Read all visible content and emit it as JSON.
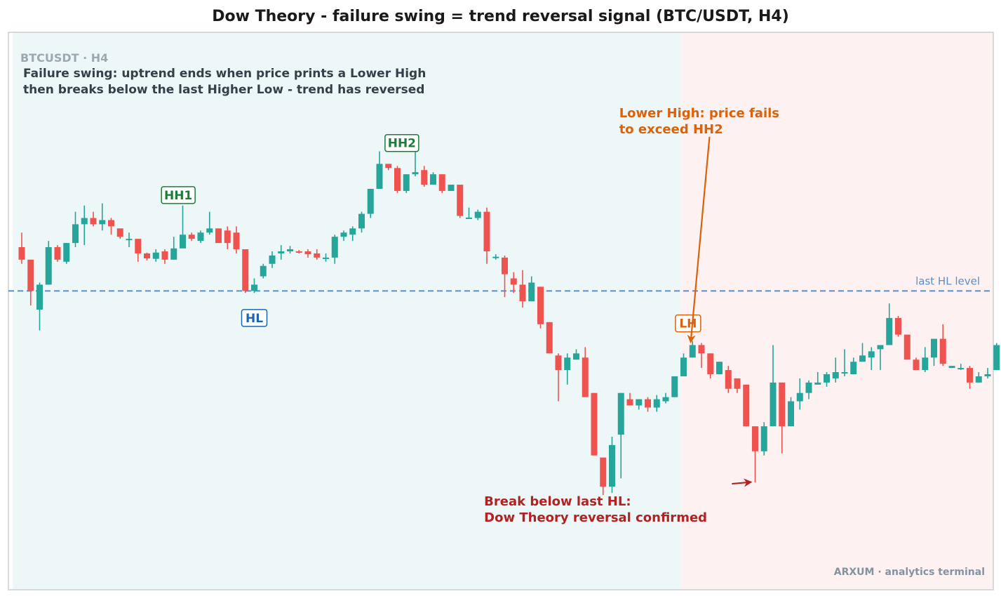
{
  "chart_data": {
    "type": "candlestick",
    "title": "Dow Theory - failure swing = trend reversal signal  (BTC/USDT, H4)",
    "subtitle": "BTCUSDT · H4",
    "annotation": "Failure swing: uptrend ends when price prints a Lower High\nthen breaks below the last Higher Low - trend has reversed",
    "watermark": "ARXUM · analytics terminal",
    "grid": false,
    "ylim": [
      -0.3,
      11.7
    ],
    "candle_colors": {
      "up": "#26a69a",
      "down": "#ef5350"
    },
    "zones": [
      {
        "name": "uptrend",
        "from_index": -1,
        "to_index": 73.7,
        "color": "#eef7f7"
      },
      {
        "name": "downtrend",
        "from_index": 73.7,
        "to_index": 110,
        "color": "#fdf1f1"
      }
    ],
    "hline": {
      "value": 6.2,
      "label": "last HL level",
      "color": "#5b8ec7"
    },
    "labels": [
      {
        "text": "HH1",
        "index": 17.5,
        "value": 8.5,
        "color": "#1e7b3a"
      },
      {
        "text": "HH2",
        "index": 42.5,
        "value": 9.75,
        "color": "#1e7b3a"
      },
      {
        "text": "HL",
        "index": 26,
        "value": 5.55,
        "color": "#1f64b4"
      },
      {
        "text": "LH",
        "index": 74.5,
        "value": 5.42,
        "color": "#d9620a"
      }
    ],
    "arrows": [
      {
        "text": "Lower High: price fails\nto exceed HH2",
        "color": "#d9620a",
        "text_index": 66.8,
        "text_value": 10.37,
        "from_index": 76.9,
        "from_value": 9.9,
        "to_index": 74.8,
        "to_value": 4.98
      },
      {
        "text": "Break below last HL:\nDow Theory reversal confirmed",
        "color": "#b22222",
        "text_index": 51.7,
        "text_value": 1.05,
        "from_index": 79.4,
        "from_value": 1.57,
        "to_index": 81.5,
        "to_value": 1.61
      }
    ],
    "candles": [
      [
        7.25,
        6.95,
        7.6,
        6.85
      ],
      [
        6.95,
        6.2,
        6.95,
        5.85
      ],
      [
        5.75,
        6.35,
        6.4,
        5.25
      ],
      [
        6.35,
        7.25,
        7.4,
        6.35
      ],
      [
        7.25,
        6.95,
        7.3,
        6.9
      ],
      [
        6.9,
        7.35,
        7.35,
        6.85
      ],
      [
        7.35,
        7.8,
        8.1,
        7.25
      ],
      [
        7.8,
        7.95,
        8.25,
        7.3
      ],
      [
        7.95,
        7.8,
        8.1,
        7.75
      ],
      [
        7.8,
        7.9,
        8.3,
        7.65
      ],
      [
        7.9,
        7.75,
        7.95,
        7.55
      ],
      [
        7.7,
        7.5,
        7.7,
        7.45
      ],
      [
        7.45,
        7.45,
        7.6,
        7.25
      ],
      [
        7.45,
        7.1,
        7.45,
        6.9
      ],
      [
        7.1,
        6.98,
        7.12,
        6.93
      ],
      [
        6.97,
        7.12,
        7.2,
        6.9
      ],
      [
        7.15,
        6.95,
        7.2,
        6.85
      ],
      [
        6.95,
        7.22,
        7.5,
        6.95
      ],
      [
        7.22,
        7.55,
        8.25,
        7.55
      ],
      [
        7.55,
        7.45,
        7.6,
        7.4
      ],
      [
        7.4,
        7.6,
        7.65,
        7.35
      ],
      [
        7.6,
        7.7,
        8.1,
        7.55
      ],
      [
        7.7,
        7.35,
        7.7,
        7.35
      ],
      [
        7.65,
        7.35,
        7.75,
        7.2
      ],
      [
        7.6,
        7.2,
        7.75,
        7.1
      ],
      [
        7.2,
        6.2,
        7.2,
        6.15
      ],
      [
        6.2,
        6.35,
        6.5,
        6.15
      ],
      [
        6.55,
        6.8,
        6.85,
        6.5
      ],
      [
        6.85,
        7.05,
        7.15,
        6.75
      ],
      [
        7.1,
        7.15,
        7.3,
        6.95
      ],
      [
        7.15,
        7.2,
        7.28,
        7.1
      ],
      [
        7.15,
        7.13,
        7.18,
        7.1
      ],
      [
        7.15,
        7.08,
        7.2,
        7.0
      ],
      [
        7.1,
        7.0,
        7.2,
        6.95
      ],
      [
        6.98,
        7.0,
        7.1,
        6.9
      ],
      [
        7.0,
        7.5,
        7.55,
        6.85
      ],
      [
        7.5,
        7.6,
        7.65,
        7.4
      ],
      [
        7.55,
        7.7,
        7.75,
        7.4
      ],
      [
        7.7,
        8.05,
        8.1,
        7.6
      ],
      [
        8.05,
        8.65,
        8.65,
        7.95
      ],
      [
        8.65,
        9.25,
        9.55,
        8.65
      ],
      [
        9.25,
        9.15,
        9.25,
        9.1
      ],
      [
        9.15,
        8.6,
        9.2,
        8.55
      ],
      [
        8.6,
        9.0,
        9.0,
        8.55
      ],
      [
        9.0,
        9.05,
        9.55,
        8.95
      ],
      [
        9.1,
        8.75,
        9.2,
        8.7
      ],
      [
        8.75,
        9.0,
        9.05,
        8.75
      ],
      [
        9.0,
        8.6,
        9.0,
        8.55
      ],
      [
        8.6,
        8.75,
        8.75,
        8.6
      ],
      [
        8.75,
        8.0,
        8.75,
        7.95
      ],
      [
        7.95,
        7.96,
        8.2,
        7.95
      ],
      [
        7.95,
        8.1,
        8.15,
        7.9
      ],
      [
        8.1,
        7.15,
        8.2,
        6.85
      ],
      [
        7.0,
        7.02,
        7.08,
        6.95
      ],
      [
        7.0,
        6.6,
        7.05,
        6.05
      ],
      [
        6.5,
        6.35,
        6.65,
        6.15
      ],
      [
        6.35,
        5.95,
        6.7,
        5.8
      ],
      [
        5.95,
        6.4,
        6.55,
        5.95
      ],
      [
        6.3,
        5.4,
        6.3,
        5.3
      ],
      [
        5.45,
        4.7,
        5.45,
        4.7
      ],
      [
        4.65,
        4.3,
        4.7,
        3.55
      ],
      [
        4.3,
        4.6,
        4.7,
        3.95
      ],
      [
        4.55,
        4.7,
        4.8,
        4.55
      ],
      [
        4.6,
        3.65,
        4.85,
        3.65
      ],
      [
        3.75,
        2.25,
        3.75,
        2.25
      ],
      [
        2.2,
        1.5,
        2.2,
        1.3
      ],
      [
        1.5,
        2.5,
        2.7,
        1.35
      ],
      [
        2.75,
        3.75,
        3.75,
        1.7
      ],
      [
        3.6,
        3.45,
        3.75,
        3.45
      ],
      [
        3.45,
        3.6,
        3.6,
        3.35
      ],
      [
        3.6,
        3.4,
        3.65,
        3.3
      ],
      [
        3.4,
        3.6,
        3.7,
        3.3
      ],
      [
        3.55,
        3.65,
        3.75,
        3.5
      ],
      [
        3.65,
        4.15,
        4.15,
        3.65
      ],
      [
        4.15,
        4.6,
        4.7,
        4.15
      ],
      [
        4.6,
        4.9,
        5.0,
        4.6
      ],
      [
        4.9,
        4.7,
        4.95,
        4.35
      ],
      [
        4.7,
        4.2,
        4.7,
        4.1
      ],
      [
        4.2,
        4.5,
        4.5,
        4.2
      ],
      [
        4.3,
        3.85,
        4.4,
        3.75
      ],
      [
        4.1,
        3.85,
        4.1,
        3.75
      ],
      [
        3.95,
        2.95,
        3.95,
        2.95
      ],
      [
        2.95,
        2.35,
        2.95,
        1.6
      ],
      [
        2.35,
        2.95,
        3.05,
        2.25
      ],
      [
        2.95,
        4.0,
        4.9,
        2.95
      ],
      [
        4.0,
        2.95,
        4.0,
        2.3
      ],
      [
        2.95,
        3.55,
        3.65,
        2.95
      ],
      [
        3.55,
        3.75,
        4.1,
        3.35
      ],
      [
        3.75,
        4.0,
        4.05,
        3.6
      ],
      [
        3.95,
        4.0,
        4.25,
        3.95
      ],
      [
        4.0,
        4.2,
        4.25,
        3.9
      ],
      [
        4.1,
        4.25,
        4.6,
        4.0
      ],
      [
        4.25,
        4.25,
        4.8,
        4.15
      ],
      [
        4.2,
        4.5,
        4.6,
        4.2
      ],
      [
        4.5,
        4.65,
        4.95,
        4.5
      ],
      [
        4.6,
        4.75,
        4.85,
        4.3
      ],
      [
        4.8,
        4.9,
        4.9,
        4.3
      ],
      [
        4.9,
        5.55,
        5.9,
        4.9
      ],
      [
        5.55,
        5.15,
        5.6,
        5.1
      ],
      [
        5.15,
        4.55,
        5.15,
        4.55
      ],
      [
        4.55,
        4.3,
        4.6,
        4.3
      ],
      [
        4.3,
        4.6,
        4.85,
        4.25
      ],
      [
        4.6,
        5.05,
        5.05,
        4.4
      ],
      [
        5.05,
        4.45,
        5.4,
        4.4
      ],
      [
        4.35,
        4.4,
        4.4,
        4.35
      ],
      [
        4.35,
        4.35,
        4.45,
        4.3
      ],
      [
        4.35,
        4.0,
        4.4,
        3.85
      ],
      [
        4.0,
        4.15,
        4.25,
        4.0
      ],
      [
        4.15,
        4.2,
        4.35,
        4.1
      ],
      [
        4.3,
        4.9,
        4.95,
        4.3
      ]
    ]
  }
}
